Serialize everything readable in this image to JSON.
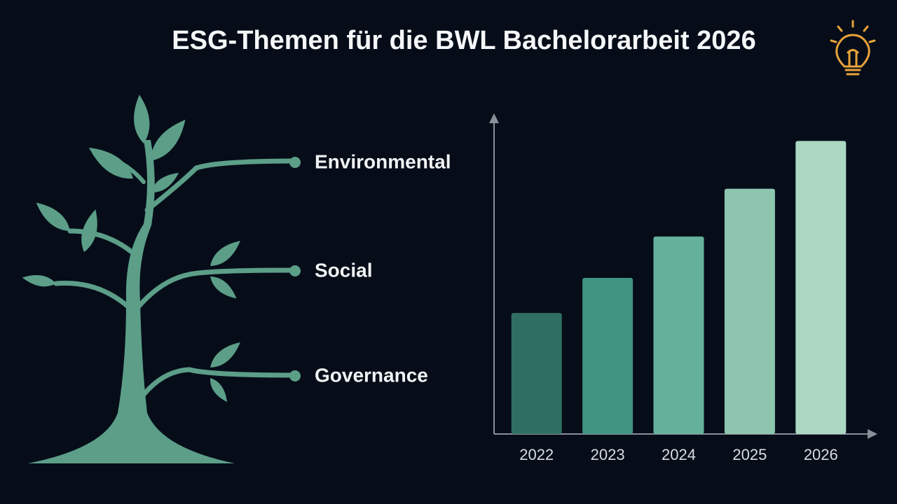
{
  "header": {
    "title": "ESG-Themen für die BWL Bachelorarbeit 2026"
  },
  "tree": {
    "branches": [
      "Environmental",
      "Social",
      "Governance"
    ]
  },
  "chart_data": {
    "type": "bar",
    "categories": [
      "2022",
      "2023",
      "2024",
      "2025",
      "2026"
    ],
    "values": [
      38,
      49,
      62,
      77,
      92
    ],
    "colors": [
      "#2f6f61",
      "#3f9581",
      "#66b19b",
      "#8dc5af",
      "#abd7c3"
    ],
    "ylim": [
      0,
      100
    ]
  }
}
